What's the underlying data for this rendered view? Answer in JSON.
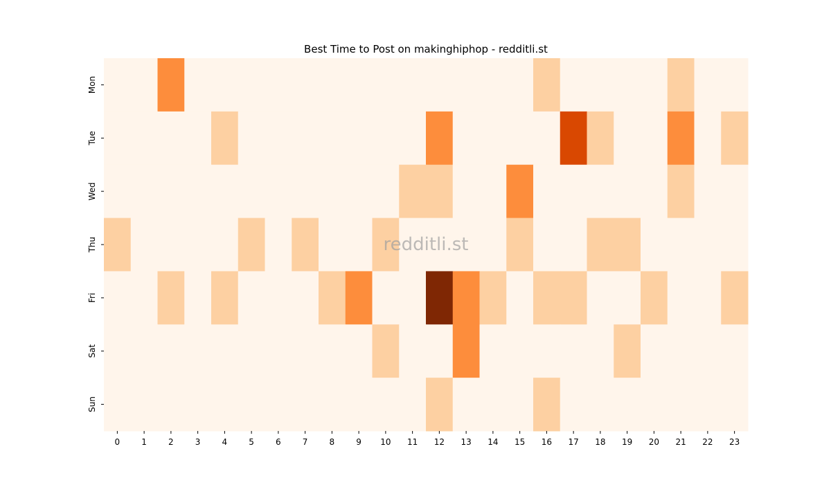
{
  "chart_data": {
    "type": "heatmap",
    "title": "Best Time to Post on makinghiphop - redditli.st",
    "watermark": "redditli.st",
    "x": [
      "0",
      "1",
      "2",
      "3",
      "4",
      "5",
      "6",
      "7",
      "8",
      "9",
      "10",
      "11",
      "12",
      "13",
      "14",
      "15",
      "16",
      "17",
      "18",
      "19",
      "20",
      "21",
      "22",
      "23"
    ],
    "y": [
      "Mon",
      "Tue",
      "Wed",
      "Thu",
      "Fri",
      "Sat",
      "Sun"
    ],
    "values": [
      [
        0,
        0,
        2,
        0,
        0,
        0,
        0,
        0,
        0,
        0,
        0,
        0,
        0,
        0,
        0,
        0,
        1,
        0,
        0,
        0,
        0,
        1,
        0,
        0
      ],
      [
        0,
        0,
        0,
        0,
        1,
        0,
        0,
        0,
        0,
        0,
        0,
        0,
        2,
        0,
        0,
        0,
        0,
        3,
        1,
        0,
        0,
        2,
        0,
        1
      ],
      [
        0,
        0,
        0,
        0,
        0,
        0,
        0,
        0,
        0,
        0,
        0,
        1,
        1,
        0,
        0,
        2,
        0,
        0,
        0,
        0,
        0,
        1,
        0,
        0
      ],
      [
        1,
        0,
        0,
        0,
        0,
        1,
        0,
        1,
        0,
        0,
        1,
        0,
        0,
        0,
        0,
        1,
        0,
        0,
        1,
        1,
        0,
        0,
        0,
        0
      ],
      [
        0,
        0,
        1,
        0,
        1,
        0,
        0,
        0,
        1,
        2,
        0,
        0,
        4,
        2,
        1,
        0,
        1,
        1,
        0,
        0,
        1,
        0,
        0,
        1
      ],
      [
        0,
        0,
        0,
        0,
        0,
        0,
        0,
        0,
        0,
        0,
        1,
        0,
        0,
        2,
        0,
        0,
        0,
        0,
        0,
        1,
        0,
        0,
        0,
        0
      ],
      [
        0,
        0,
        0,
        0,
        0,
        0,
        0,
        0,
        0,
        0,
        0,
        0,
        1,
        0,
        0,
        0,
        1,
        0,
        0,
        0,
        0,
        0,
        0,
        0
      ]
    ],
    "colormap": [
      "#fff5eb",
      "#fdd0a2",
      "#fd8d3c",
      "#d94801",
      "#7f2704"
    ]
  }
}
